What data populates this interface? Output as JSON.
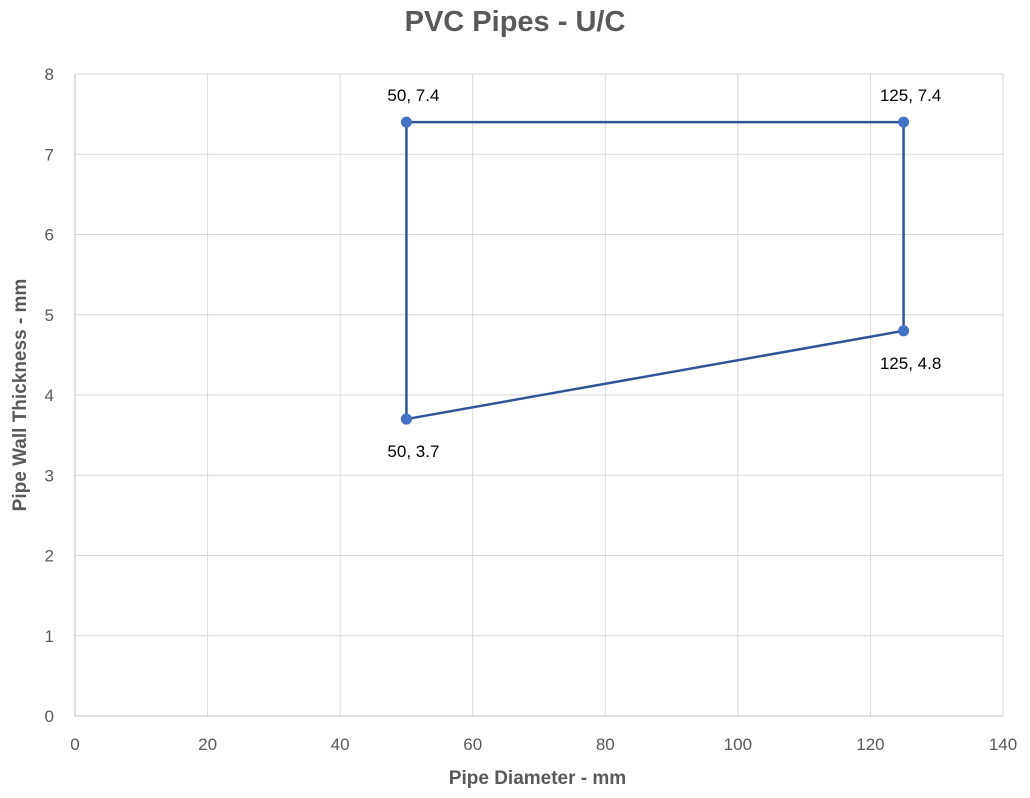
{
  "chart_data": {
    "type": "scatter",
    "title": "PVC Pipes - U/C",
    "xlabel": "Pipe Diameter - mm",
    "ylabel": "Pipe Wall Thickness - mm",
    "xlim": [
      0,
      140
    ],
    "ylim": [
      0,
      8
    ],
    "x_ticks": [
      "0",
      "20",
      "40",
      "60",
      "80",
      "100",
      "120",
      "140"
    ],
    "y_ticks": [
      "0",
      "1",
      "2",
      "3",
      "4",
      "5",
      "6",
      "7",
      "8"
    ],
    "grid": true,
    "series": [
      {
        "points": [
          {
            "x": 50,
            "y": 3.7,
            "label": "50, 3.7"
          },
          {
            "x": 50,
            "y": 7.4,
            "label": "50, 7.4"
          },
          {
            "x": 125,
            "y": 7.4,
            "label": "125, 7.4"
          },
          {
            "x": 125,
            "y": 4.8,
            "label": "125, 4.8"
          },
          {
            "x": 50,
            "y": 3.7,
            "label": ""
          }
        ],
        "color": "#4472C4",
        "line_color": "#2F5597"
      }
    ]
  }
}
